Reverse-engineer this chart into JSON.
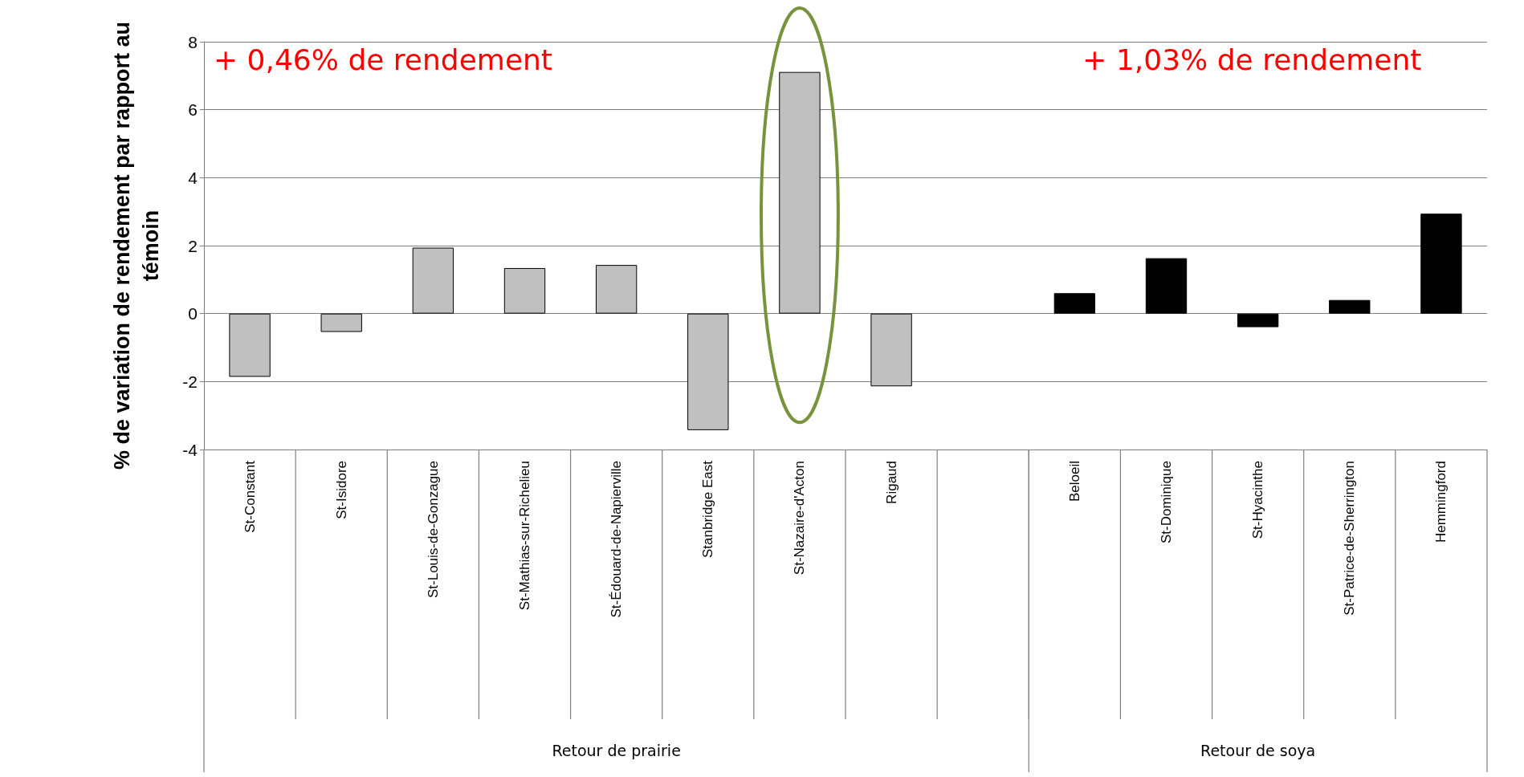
{
  "chart_data": {
    "type": "bar",
    "ylabel": "% de variation de rendement par rapport au témoin",
    "categories": [
      "St-Constant",
      "St-Isidore",
      "St-Louis-de-Gonzague",
      "St-Mathias-sur-Richelieu",
      "St-Édouard-de-Napierville",
      "Stanbridge East",
      "St-Nazaire-d'Acton",
      "Rigaud",
      null,
      "Beloeil",
      "St-Dominique",
      "St-Hyacinthe",
      "St-Patrice-de-Sherrington",
      "Hemmingford"
    ],
    "series": [
      {
        "color": "#c0c0c0",
        "values": [
          -1.86,
          -0.54,
          1.94,
          1.34,
          1.43,
          -3.43,
          7.11,
          -2.14,
          null,
          null,
          null,
          null,
          null,
          null
        ]
      },
      {
        "color": "#000000",
        "values": [
          null,
          null,
          null,
          null,
          null,
          null,
          null,
          null,
          null,
          0.6,
          1.63,
          -0.4,
          0.4,
          2.94
        ]
      }
    ],
    "ylim": [
      -4,
      8
    ],
    "yticks": [
      -4,
      -2,
      0,
      2,
      4,
      6,
      8
    ],
    "grid": "y",
    "annotations": [
      "+ 0,46% de rendement",
      "+ 1,03% de rendement",
      "Retour de prairie",
      "Retour de soya"
    ]
  }
}
